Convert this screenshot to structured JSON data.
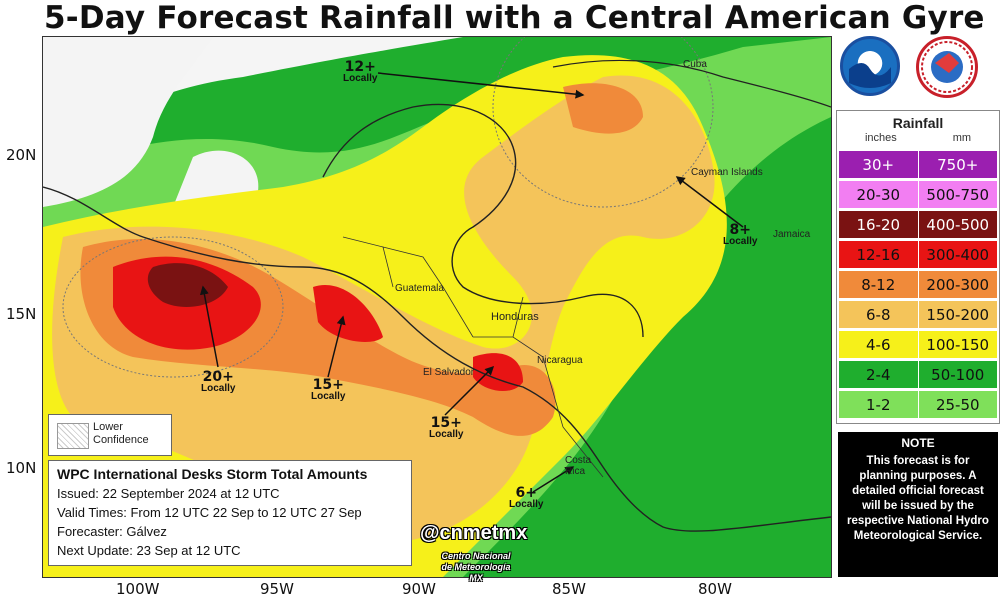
{
  "title": "5-Day Forecast Rainfall with a Central American Gyre",
  "axes": {
    "latitude_labels": [
      "20N",
      "15N",
      "10N"
    ],
    "longitude_labels": [
      "100W",
      "95W",
      "90W",
      "85W",
      "80W"
    ]
  },
  "legend": {
    "heading": "Rainfall",
    "unit_inches": "inches",
    "unit_mm": "mm",
    "rows": [
      {
        "inches": "30+",
        "mm": "750+",
        "color": "#9b1fb0",
        "text_color": "#ffffff"
      },
      {
        "inches": "20-30",
        "mm": "500-750",
        "color": "#f27ef2",
        "text_color": "#111111"
      },
      {
        "inches": "16-20",
        "mm": "400-500",
        "color": "#7a1212",
        "text_color": "#ffffff"
      },
      {
        "inches": "12-16",
        "mm": "300-400",
        "color": "#e81414",
        "text_color": "#111111"
      },
      {
        "inches": "8-12",
        "mm": "200-300",
        "color": "#f08a3a",
        "text_color": "#111111"
      },
      {
        "inches": "6-8",
        "mm": "150-200",
        "color": "#f4c45a",
        "text_color": "#111111"
      },
      {
        "inches": "4-6",
        "mm": "100-150",
        "color": "#f6f01a",
        "text_color": "#111111"
      },
      {
        "inches": "2-4",
        "mm": "50-100",
        "color": "#1fae2e",
        "text_color": "#111111"
      },
      {
        "inches": "1-2",
        "mm": "25-50",
        "color": "#7fe05a",
        "text_color": "#111111"
      }
    ]
  },
  "note": {
    "title": "NOTE",
    "body": "This forecast is for planning purposes. A detailed official forecast will be issued by the respective National Hydro Meteorological Service."
  },
  "info_box": {
    "title": "WPC International Desks Storm Total Amounts",
    "issued": "Issued:  22 September 2024 at 12 UTC",
    "valid": "Valid Times:  From 12 UTC 22 Sep  to  12 UTC 27 Sep",
    "forecaster": "Forecaster: Gálvez",
    "next_update": "Next Update: 23 Sep at 12 UTC"
  },
  "lower_confidence": "Lower Confidence",
  "watermark": {
    "handle": "@cnmetmx",
    "org": "Centro Nacional de Meteorología MX"
  },
  "callouts": [
    {
      "amount": "12+",
      "label": "Locally"
    },
    {
      "amount": "8+",
      "label": "Locally"
    },
    {
      "amount": "20+",
      "label": "Locally"
    },
    {
      "amount": "15+",
      "label": "Locally"
    },
    {
      "amount": "15+",
      "label": "Locally"
    },
    {
      "amount": "6+",
      "label": "Locally"
    }
  ],
  "place_labels": [
    "Honduras",
    "Guatemala",
    "El Salvador",
    "Nicaragua",
    "Costa Rica",
    "Cayman Islands",
    "Jamaica",
    "Cuba"
  ]
}
